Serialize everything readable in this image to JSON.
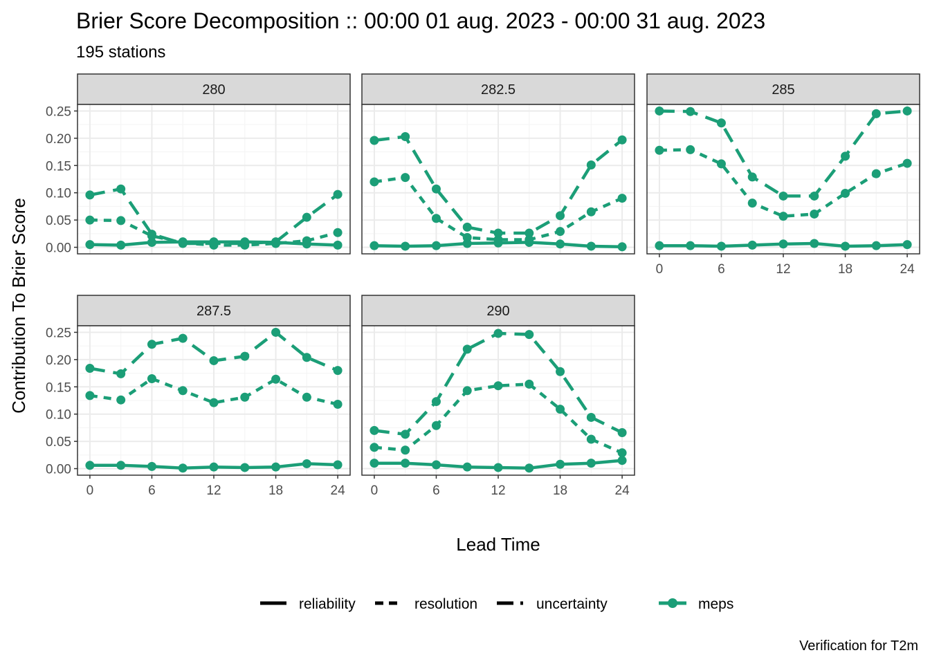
{
  "title": "Brier Score Decomposition :: 00:00 01 aug. 2023 - 00:00 31 aug. 2023",
  "subtitle": "195 stations",
  "caption": "Verification for T2m",
  "colors": {
    "meps": "#1b9e77",
    "strip_bg": "#d9d9d9",
    "grid_major": "#ebebeb",
    "grid_minor": "#f5f5f5",
    "panel_border": "#333333"
  },
  "chart_data": {
    "type": "line",
    "facet_by": "threshold",
    "xlabel": "Lead Time",
    "ylabel": "Contribution To Brier Score",
    "x": [
      0,
      3,
      6,
      9,
      12,
      15,
      18,
      21,
      24
    ],
    "x_ticks": [
      0,
      6,
      12,
      18,
      24
    ],
    "xlim": [
      -1.2,
      25.2
    ],
    "y_ticks": [
      0.0,
      0.05,
      0.1,
      0.15,
      0.2,
      0.25
    ],
    "y_tick_labels": [
      "0.00",
      "0.05",
      "0.10",
      "0.15",
      "0.20",
      "0.25"
    ],
    "ylim": [
      -0.012,
      0.262
    ],
    "grid": true,
    "model": "meps",
    "legend": {
      "position": "bottom",
      "linetype_entries": [
        "reliability",
        "resolution",
        "uncertainty"
      ],
      "colour_entries": [
        "meps"
      ]
    },
    "panels": [
      {
        "label": "280",
        "series": [
          {
            "name": "reliability",
            "values": [
              0.005,
              0.004,
              0.009,
              0.01,
              0.01,
              0.01,
              0.009,
              0.006,
              0.004
            ]
          },
          {
            "name": "resolution",
            "values": [
              0.05,
              0.049,
              0.021,
              0.008,
              0.004,
              0.004,
              0.007,
              0.012,
              0.027
            ]
          },
          {
            "name": "uncertainty",
            "values": [
              0.096,
              0.107,
              0.024,
              0.007,
              0.007,
              0.007,
              0.01,
              0.055,
              0.097
            ]
          }
        ]
      },
      {
        "label": "282.5",
        "series": [
          {
            "name": "reliability",
            "values": [
              0.003,
              0.002,
              0.003,
              0.007,
              0.008,
              0.009,
              0.006,
              0.002,
              0.001
            ]
          },
          {
            "name": "resolution",
            "values": [
              0.12,
              0.128,
              0.053,
              0.018,
              0.014,
              0.014,
              0.029,
              0.065,
              0.09
            ]
          },
          {
            "name": "uncertainty",
            "values": [
              0.196,
              0.203,
              0.107,
              0.037,
              0.026,
              0.026,
              0.058,
              0.151,
              0.197
            ]
          }
        ]
      },
      {
        "label": "285",
        "series": [
          {
            "name": "reliability",
            "values": [
              0.003,
              0.003,
              0.002,
              0.004,
              0.006,
              0.007,
              0.002,
              0.003,
              0.005
            ]
          },
          {
            "name": "resolution",
            "values": [
              0.178,
              0.179,
              0.153,
              0.081,
              0.057,
              0.061,
              0.099,
              0.135,
              0.154
            ]
          },
          {
            "name": "uncertainty",
            "values": [
              0.25,
              0.249,
              0.228,
              0.129,
              0.094,
              0.094,
              0.167,
              0.245,
              0.25
            ]
          }
        ]
      },
      {
        "label": "287.5",
        "series": [
          {
            "name": "reliability",
            "values": [
              0.006,
              0.006,
              0.004,
              0.001,
              0.003,
              0.002,
              0.003,
              0.009,
              0.007
            ]
          },
          {
            "name": "resolution",
            "values": [
              0.134,
              0.126,
              0.165,
              0.143,
              0.121,
              0.131,
              0.164,
              0.131,
              0.118
            ]
          },
          {
            "name": "uncertainty",
            "values": [
              0.184,
              0.174,
              0.228,
              0.239,
              0.198,
              0.206,
              0.25,
              0.204,
              0.18
            ]
          }
        ]
      },
      {
        "label": "290",
        "series": [
          {
            "name": "reliability",
            "values": [
              0.01,
              0.01,
              0.007,
              0.003,
              0.002,
              0.001,
              0.008,
              0.01,
              0.015
            ]
          },
          {
            "name": "resolution",
            "values": [
              0.039,
              0.034,
              0.079,
              0.143,
              0.152,
              0.155,
              0.109,
              0.054,
              0.029
            ]
          },
          {
            "name": "uncertainty",
            "values": [
              0.07,
              0.063,
              0.123,
              0.219,
              0.248,
              0.246,
              0.178,
              0.094,
              0.066
            ]
          }
        ]
      }
    ]
  }
}
